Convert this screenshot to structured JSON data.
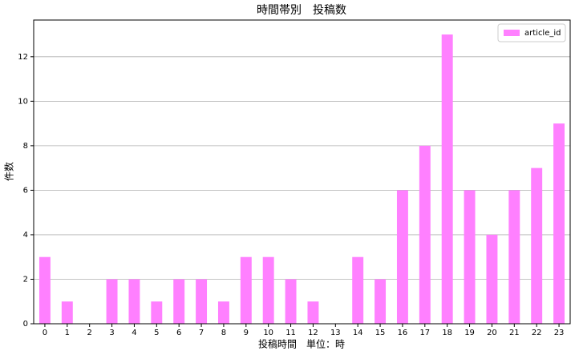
{
  "chart_data": {
    "type": "bar",
    "title": "時間帯別　投稿数",
    "x_label": "投稿時間　単位：時",
    "y_label": "件数",
    "categories": [
      "0",
      "1",
      "2",
      "3",
      "4",
      "5",
      "6",
      "7",
      "8",
      "9",
      "10",
      "11",
      "12",
      "13",
      "14",
      "15",
      "16",
      "17",
      "18",
      "19",
      "20",
      "21",
      "22",
      "23"
    ],
    "series": [
      {
        "name": "article_id",
        "color": "#ff80ff",
        "values": [
          3,
          1,
          0,
          2,
          2,
          1,
          2,
          2,
          1,
          3,
          3,
          2,
          1,
          0,
          3,
          2,
          6,
          8,
          13,
          6,
          4,
          6,
          7,
          9
        ]
      }
    ],
    "ylim": [
      0,
      13.65
    ],
    "yticks": [
      0,
      2,
      4,
      6,
      8,
      10,
      12
    ],
    "grid": true,
    "legend": "upper right"
  }
}
